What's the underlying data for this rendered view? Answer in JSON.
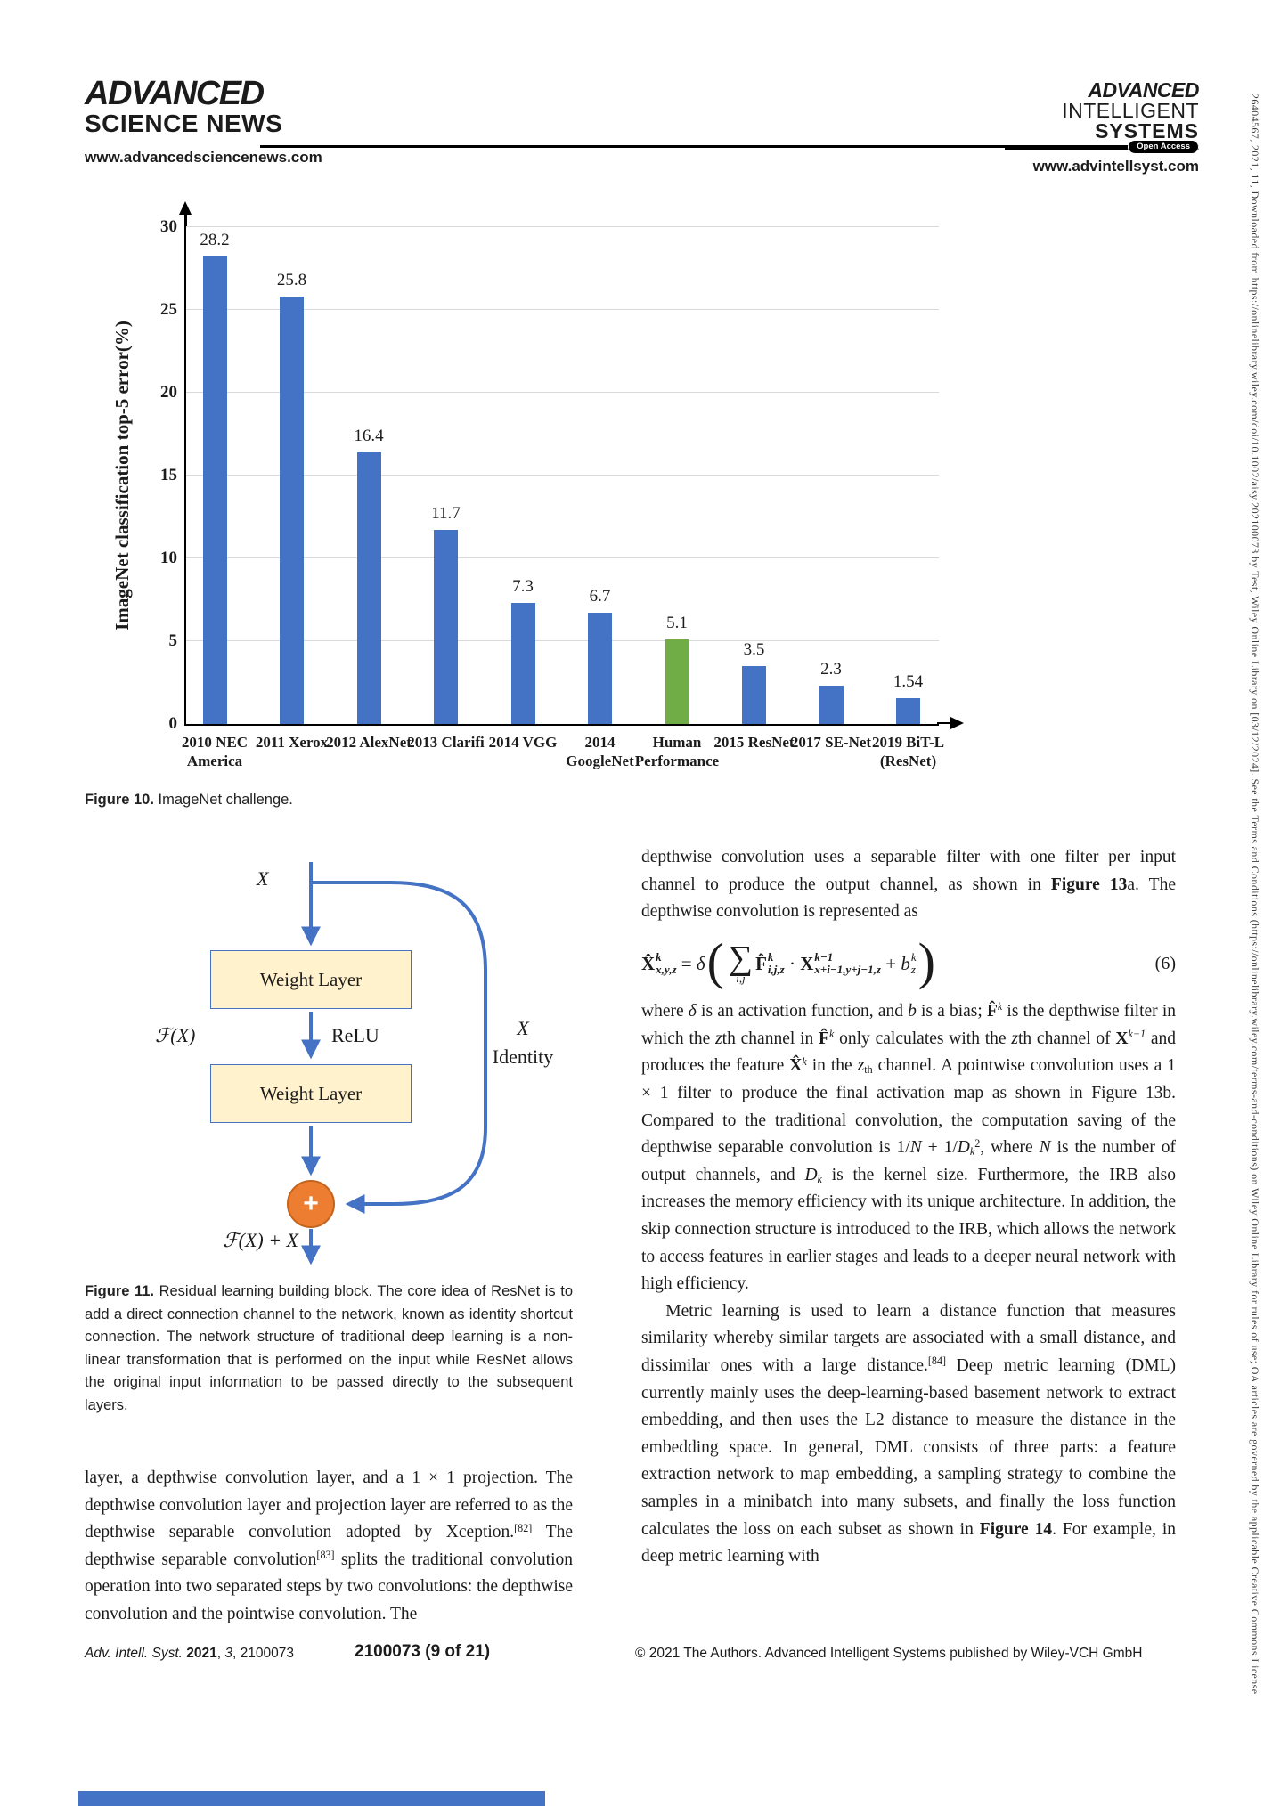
{
  "header": {
    "asn_logo": {
      "line1": "ADVANCED",
      "line2": "SCIENCE NEWS",
      "url": "www.advancedsciencenews.com"
    },
    "ais_logo": {
      "line1": "ADVANCED",
      "line2": "INTELLIGENT",
      "line3": "SYSTEMS",
      "badge": "Open Access",
      "url": "www.advintellsyst.com"
    }
  },
  "sidebar_note": "26404567, 2021, 11, Downloaded from https://onlinelibrary.wiley.com/doi/10.1002/aisy.202100073 by Test, Wiley Online Library on [03/12/2024]. See the Terms and Conditions (https://onlinelibrary.wiley.com/terms-and-conditions) on Wiley Online Library for rules of use; OA articles are governed by the applicable Creative Commons License",
  "chart_data": {
    "type": "bar",
    "title": "",
    "ylabel": "ImageNet classification top-5 error(%)",
    "xlabel": "",
    "ylim": [
      0,
      30
    ],
    "yticks": [
      0,
      5,
      10,
      15,
      20,
      25,
      30
    ],
    "grid": "horizontal",
    "legend": "none",
    "categories": [
      "2010 NEC\nAmerica",
      "2011 Xerox",
      "2012 AlexNet",
      "2013 Clarifi",
      "2014 VGG",
      "2014\nGoogleNet",
      "Human\nPerformance",
      "2015 ResNet",
      "2017 SE-Net",
      "2019 BiT-L\n(ResNet)"
    ],
    "values": [
      28.2,
      25.8,
      16.4,
      11.7,
      7.3,
      6.7,
      5.1,
      3.5,
      2.3,
      1.54
    ],
    "value_labels": [
      "28.2",
      "25.8",
      "16.4",
      "11.7",
      "7.3",
      "6.7",
      "5.1",
      "3.5",
      "2.3",
      "1.54"
    ],
    "bar_color": "#4472C4",
    "highlight_index": 6,
    "highlight_color": "#70AD47"
  },
  "figure10": {
    "label": "Figure 10.",
    "caption": " ImageNet challenge."
  },
  "figure11": {
    "label": "Figure 11.",
    "caption": " Residual learning building block. The core idea of ResNet is to add a direct connection channel to the network, known as identity shortcut connection. The network structure of traditional deep learning is a non-linear transformation that is performed on the input while ResNet allows the original input information to be passed directly to the subsequent layers.",
    "diagram": {
      "input_label": "X",
      "weight_layer1": "Weight Layer",
      "weight_layer2": "Weight Layer",
      "relu_label": "ReLU",
      "fx_label": "ℱ(X)",
      "identity_label_top": "X",
      "identity_label_bottom": "Identity",
      "plus_label": "+",
      "output_label": "ℱ(X) + X",
      "arrow_color": "#4472C4",
      "box_fill": "#FFF2CC",
      "plus_fill": "#ED7D31"
    }
  },
  "left_column": {
    "para_segments": [
      {
        "t": "layer, a depthwise convolution layer, and a 1 × 1 projection. The depthwise convolution layer and projection layer are referred to as the depthwise separable convolution adopted by Xception."
      },
      {
        "t": "[82]",
        "u": 1
      },
      {
        "t": " The depthwise separable convolution"
      },
      {
        "t": "[83]",
        "u": 1
      },
      {
        "t": " splits the traditional convolution operation into two separated steps by two convolutions: the depthwise convolution and the pointwise convolution. The"
      }
    ]
  },
  "right_column": {
    "para1_segments": [
      {
        "t": "depthwise convolution uses a separable filter with one filter per input channel to produce the output channel, as shown in "
      },
      {
        "t": "Figure 13",
        "b": 1
      },
      {
        "t": "a. The depthwise convolution is represented as"
      }
    ],
    "equation_segments": [
      {
        "type": "ss",
        "base": "X̂",
        "up": "k",
        "dn": "x,y,z",
        "b": 1
      },
      {
        "t": " = "
      },
      {
        "t": "δ",
        "i": 1
      },
      {
        "type": "paren",
        "t": "("
      },
      {
        "type": "sum",
        "dn": "i,j"
      },
      {
        "type": "ss",
        "base": "F̂",
        "up": "k",
        "dn": "i,j,z",
        "b": 1
      },
      {
        "t": " · "
      },
      {
        "type": "ss",
        "base": "X",
        "up": "k−1",
        "dn": "x+i−1,y+j−1,z",
        "b": 1
      },
      {
        "t": " + "
      },
      {
        "type": "ss",
        "base": "b",
        "up": "k",
        "dn": "z",
        "i": 1
      },
      {
        "type": "paren",
        "t": ")"
      }
    ],
    "eq_number": "(6)",
    "para2_segments": [
      {
        "t": "where "
      },
      {
        "t": "δ",
        "i": 1
      },
      {
        "t": " is an activation function, and "
      },
      {
        "t": "b",
        "i": 1
      },
      {
        "t": " is a bias; "
      },
      {
        "t": "F̂",
        "b": 1
      },
      {
        "t": "k",
        "u": 1,
        "i": 1
      },
      {
        "t": " is the depthwise filter in which the "
      },
      {
        "t": "z",
        "i": 1
      },
      {
        "t": "th channel in "
      },
      {
        "t": "F̂",
        "b": 1
      },
      {
        "t": "k",
        "u": 1,
        "i": 1
      },
      {
        "t": " only calculates with the "
      },
      {
        "t": "z",
        "i": 1
      },
      {
        "t": "th channel of "
      },
      {
        "t": "X",
        "b": 1
      },
      {
        "t": "k−1",
        "u": 1,
        "i": 1
      },
      {
        "t": " and produces the feature "
      },
      {
        "t": "X̂",
        "b": 1
      },
      {
        "t": "k",
        "u": 1,
        "i": 1
      },
      {
        "t": " in the "
      },
      {
        "t": "z",
        "i": 1
      },
      {
        "t": "th",
        "d": 1
      },
      {
        "t": " channel. A pointwise convolution uses a 1 × 1 filter to produce the final activation map as shown in Figure 13b. Compared to the traditional convolution, the computation saving of the depthwise separable convolution is 1/"
      },
      {
        "t": "N",
        "i": 1
      },
      {
        "t": " + 1/"
      },
      {
        "t": "D",
        "i": 1
      },
      {
        "t": "k",
        "d": 1,
        "i": 1
      },
      {
        "t": "2",
        "u": 1
      },
      {
        "t": ", where "
      },
      {
        "t": "N",
        "i": 1
      },
      {
        "t": " is the number of output channels, and "
      },
      {
        "t": "D",
        "i": 1
      },
      {
        "t": "k",
        "d": 1,
        "i": 1
      },
      {
        "t": " is the kernel size. Furthermore, the IRB also increases the memory efficiency with its unique architecture. In addition, the skip connection structure is introduced to the IRB, which allows the network to access features in earlier stages and leads to a deeper neural network with high efficiency."
      }
    ],
    "para3_segments": [
      {
        "t": "Metric learning is used to learn a distance function that measures similarity whereby similar targets are associated with a small distance, and dissimilar ones with a large distance."
      },
      {
        "t": "[84]",
        "u": 1
      },
      {
        "t": " Deep metric learning (DML) currently mainly uses the deep-learning-based basement network to extract embedding, and then uses the L2 distance to measure the distance in the embedding space. In general, DML consists of three parts: a feature extraction network to map embedding, a sampling strategy to combine the samples in a minibatch into many subsets, and finally the loss function calculates the loss on each subset as shown in "
      },
      {
        "t": "Figure 14",
        "b": 1
      },
      {
        "t": ". For example, in deep metric learning with"
      }
    ]
  },
  "footer": {
    "left_segments": [
      {
        "t": "Adv. Intell. Syst. ",
        "i": 1
      },
      {
        "t": "2021",
        "b": 1
      },
      {
        "t": ", "
      },
      {
        "t": "3",
        "i": 1
      },
      {
        "t": ", 2100073"
      }
    ],
    "page_info": "2100073 (9 of 21)",
    "copyright": "© 2021 The Authors. Advanced Intelligent Systems published by Wiley-VCH GmbH"
  }
}
